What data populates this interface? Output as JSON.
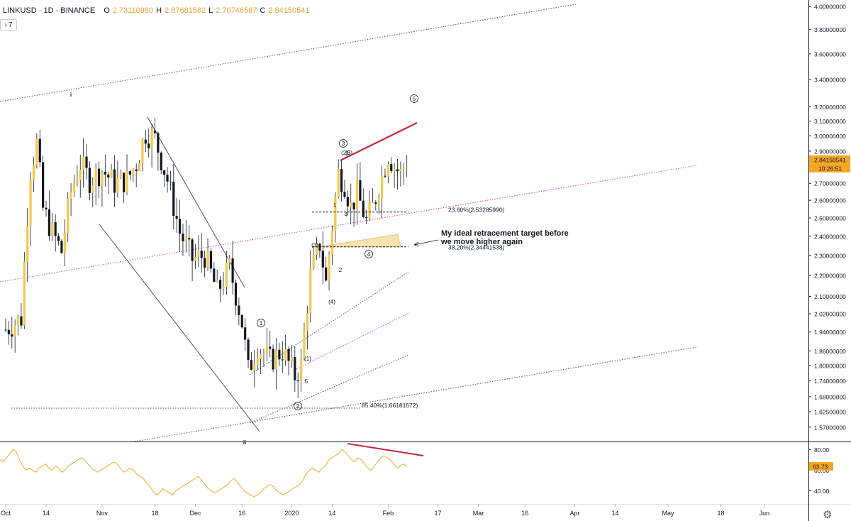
{
  "header": {
    "symbol": "LINKUSD · 1D · BINANCE",
    "o_label": "O",
    "o_value": "2.73110980",
    "h_label": "H",
    "h_value": "2.87681582",
    "l_label": "L",
    "l_value": "2.70746587",
    "c_label": "C",
    "c_value": "2.84150541",
    "indicator_toggle": "7"
  },
  "colors": {
    "bull": "#f2c94c",
    "bear": "#131722",
    "rsi": "#f5a623",
    "divergence": "#c62838",
    "fib_zone": "#f7e3b0",
    "channel_purple": "#a64ec8",
    "price_tag": "#f5a623"
  },
  "chart_data": [
    {
      "type": "candlestick",
      "title": "",
      "x_range": [
        "2019-10-01",
        "2020-06-08"
      ],
      "ylim": [
        1.54,
        4.02
      ],
      "y_scale": "log",
      "y_ticks": [
        "4.00000000",
        "3.80000000",
        "3.60000000",
        "3.40000000",
        "3.20000000",
        "3.10000000",
        "3.00000000",
        "2.90000000",
        "2.80000000",
        "2.70000000",
        "2.60000000",
        "2.50000000",
        "2.40000000",
        "2.30000000",
        "2.20000000",
        "2.10000000",
        "2.02000000",
        "1.94000000",
        "1.86000000",
        "1.80000000",
        "1.74000000",
        "1.68000000",
        "1.62500000",
        "1.57000000"
      ],
      "x_ticks": [
        {
          "label": "Oct",
          "date": "2019-10-01"
        },
        {
          "label": "14",
          "date": "2019-10-14"
        },
        {
          "label": "Nov",
          "date": "2019-11-01"
        },
        {
          "label": "18",
          "date": "2019-11-18"
        },
        {
          "label": "Dec",
          "date": "2019-12-01"
        },
        {
          "label": "16",
          "date": "2019-12-16"
        },
        {
          "label": "2020",
          "date": "2020-01-01"
        },
        {
          "label": "14",
          "date": "2020-01-14"
        },
        {
          "label": "Feb",
          "date": "2020-02-01"
        },
        {
          "label": "17",
          "date": "2020-02-17"
        },
        {
          "label": "Mar",
          "date": "2020-03-01"
        },
        {
          "label": "16",
          "date": "2020-03-16"
        },
        {
          "label": "Apr",
          "date": "2020-04-01"
        },
        {
          "label": "14",
          "date": "2020-04-14"
        },
        {
          "label": "May",
          "date": "2020-05-01"
        },
        {
          "label": "18",
          "date": "2020-05-18"
        },
        {
          "label": "Jun",
          "date": "2020-06-01"
        }
      ],
      "key_prices": [
        {
          "date": "2019-10-01",
          "price": 1.95
        },
        {
          "date": "2019-10-06",
          "price": 2.0
        },
        {
          "date": "2019-10-09",
          "price": 2.78
        },
        {
          "date": "2019-10-11",
          "price": 2.95
        },
        {
          "date": "2019-10-13",
          "price": 2.55
        },
        {
          "date": "2019-10-16",
          "price": 2.42
        },
        {
          "date": "2019-10-19",
          "price": 2.32
        },
        {
          "date": "2019-10-22",
          "price": 2.65
        },
        {
          "date": "2019-10-25",
          "price": 2.82
        },
        {
          "date": "2019-10-28",
          "price": 2.72
        },
        {
          "date": "2019-11-01",
          "price": 2.78
        },
        {
          "date": "2019-11-05",
          "price": 2.7
        },
        {
          "date": "2019-11-09",
          "price": 2.72
        },
        {
          "date": "2019-11-12",
          "price": 2.82
        },
        {
          "date": "2019-11-15",
          "price": 3.02
        },
        {
          "date": "2019-11-18",
          "price": 2.98
        },
        {
          "date": "2019-11-22",
          "price": 2.72
        },
        {
          "date": "2019-11-26",
          "price": 2.42
        },
        {
          "date": "2019-11-30",
          "price": 2.28
        },
        {
          "date": "2019-12-04",
          "price": 2.3
        },
        {
          "date": "2019-12-08",
          "price": 2.12
        },
        {
          "date": "2019-12-12",
          "price": 2.24
        },
        {
          "date": "2019-12-16",
          "price": 1.98
        },
        {
          "date": "2019-12-18",
          "price": 1.78
        },
        {
          "date": "2019-12-21",
          "price": 1.88
        },
        {
          "date": "2019-12-25",
          "price": 1.82
        },
        {
          "date": "2019-12-29",
          "price": 1.86
        },
        {
          "date": "2020-01-02",
          "price": 1.76
        },
        {
          "date": "2020-01-04",
          "price": 1.8
        },
        {
          "date": "2020-01-07",
          "price": 2.2
        },
        {
          "date": "2020-01-10",
          "price": 2.36
        },
        {
          "date": "2020-01-12",
          "price": 2.16
        },
        {
          "date": "2020-01-14",
          "price": 2.46
        },
        {
          "date": "2020-01-16",
          "price": 2.76
        },
        {
          "date": "2020-01-18",
          "price": 2.7
        },
        {
          "date": "2020-01-20",
          "price": 2.56
        },
        {
          "date": "2020-01-22",
          "price": 2.64
        },
        {
          "date": "2020-01-25",
          "price": 2.48
        },
        {
          "date": "2020-01-27",
          "price": 2.56
        },
        {
          "date": "2020-01-30",
          "price": 2.74
        },
        {
          "date": "2020-02-01",
          "price": 2.88
        },
        {
          "date": "2020-02-03",
          "price": 2.8
        },
        {
          "date": "2020-02-05",
          "price": 2.76
        },
        {
          "date": "2020-02-07",
          "price": 2.84
        }
      ],
      "last_price_label": "2.84150541",
      "countdown_label": "10:26:51",
      "fib_levels": [
        {
          "label": "23.60%(2.53285990)",
          "price": 2.5328599
        },
        {
          "label": "38.20%(2.34441538)",
          "price": 2.34441538
        },
        {
          "label": "85.40%(1.66181572)",
          "price": 1.66181572
        }
      ],
      "target_zone": {
        "from_date": "2020-01-10",
        "to_date": "2020-02-05",
        "low": 2.34441538,
        "high": 2.41
      },
      "annotation": {
        "text_line1": "My ideal retracement target before",
        "text_line2": "we move higher again"
      },
      "wave_labels": [
        "i",
        "ii",
        "1",
        "2",
        "3",
        "4",
        "5",
        "(3)",
        "(4)",
        "1",
        "2",
        "3",
        "4",
        "5",
        "(1)",
        "(2)",
        "(5)"
      ]
    },
    {
      "type": "line",
      "title": "RSI",
      "ylim": [
        30,
        85
      ],
      "y_ticks": [
        "80.00",
        "60.00",
        "40.00"
      ],
      "last_value_label": "63.73",
      "values": [
        70,
        68,
        72,
        76,
        80,
        78,
        70,
        64,
        60,
        62,
        60,
        58,
        62,
        64,
        66,
        62,
        60,
        64,
        62,
        58,
        60,
        64,
        66,
        68,
        70,
        72,
        70,
        66,
        62,
        60,
        58,
        60,
        62,
        64,
        66,
        68,
        66,
        62,
        58,
        60,
        62,
        60,
        56,
        54,
        52,
        48,
        44,
        40,
        36,
        38,
        42,
        40,
        38,
        36,
        40,
        42,
        44,
        46,
        48,
        50,
        52,
        54,
        50,
        46,
        42,
        40,
        38,
        40,
        42,
        44,
        46,
        50,
        52,
        48,
        44,
        40,
        38,
        36,
        34,
        36,
        38,
        42,
        44,
        46,
        44,
        40,
        38,
        36,
        38,
        40,
        42,
        44,
        46,
        50,
        56,
        60,
        62,
        60,
        58,
        62,
        64,
        70,
        72,
        74,
        76,
        80,
        78,
        74,
        70,
        68,
        72,
        70,
        66,
        62,
        60,
        64,
        68,
        72,
        74,
        72,
        70,
        66,
        62,
        64,
        66,
        63.73
      ]
    }
  ]
}
